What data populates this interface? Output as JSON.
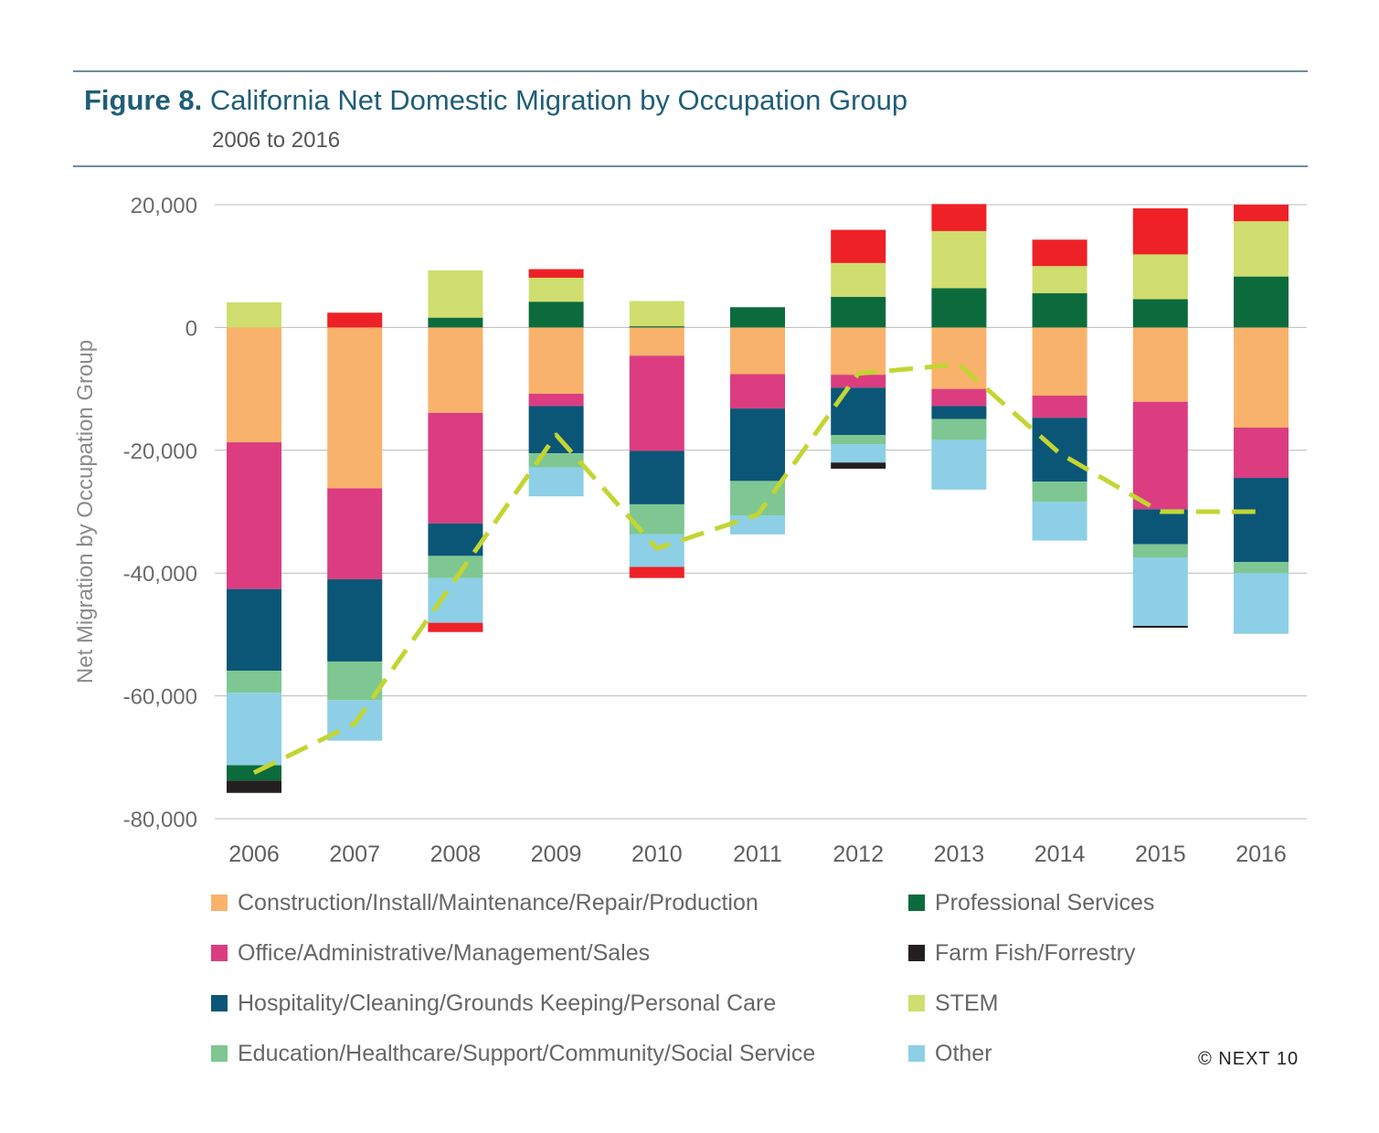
{
  "figure_label": "Figure 8.",
  "title": "California Net Domestic Migration by Occupation Group",
  "subtitle": "2006 to 2016",
  "copyright": "© NEXT 10",
  "chart_data": {
    "type": "bar",
    "stacked": true,
    "ylabel": "Net Migration by Occupation Group",
    "xlabel": "",
    "ylim": [
      -80000,
      20000
    ],
    "yticks": [
      20000,
      0,
      -20000,
      -40000,
      -60000,
      -80000
    ],
    "ytick_labels": [
      "20,000",
      "0",
      "-20,000",
      "-40,000",
      "-60,000",
      "-80,000"
    ],
    "grid": true,
    "legend_position": "bottom",
    "categories": [
      "2006",
      "2007",
      "2008",
      "2009",
      "2010",
      "2011",
      "2012",
      "2013",
      "2014",
      "2015",
      "2016"
    ],
    "series": [
      {
        "name": "Construction/Install/Maintenance/Repair/Production",
        "color": "#f9b26b",
        "values": [
          -18700,
          -26200,
          -13900,
          -10800,
          -4600,
          -7600,
          -7700,
          -10000,
          -11100,
          -12100,
          -16300
        ]
      },
      {
        "name": "Office/Administrative/Management/Sales",
        "color": "#db3d80",
        "values": [
          -23900,
          -14800,
          -18000,
          -2000,
          -15500,
          -5600,
          -2100,
          -2800,
          -3600,
          -17500,
          -8200
        ]
      },
      {
        "name": "Hospitality/Cleaning/Grounds Keeping/Personal Care",
        "color": "#0b5677",
        "values": [
          -13300,
          -13400,
          -5300,
          -7700,
          -8700,
          -11800,
          -7700,
          -2100,
          -10400,
          -5700,
          -13700
        ]
      },
      {
        "name": "Education/Healthcare/Support/Community/Social Service",
        "color": "#7ec792",
        "values": [
          -3600,
          -6300,
          -3600,
          -2300,
          -4900,
          -5600,
          -1500,
          -3400,
          -3300,
          -2200,
          -1800
        ]
      },
      {
        "name": "Other",
        "color": "#8dcfe6",
        "values": [
          -11800,
          -6600,
          -7300,
          -4700,
          -5300,
          -3100,
          -3000,
          -8100,
          -6300,
          -11100,
          -9900
        ]
      },
      {
        "name": "Professional Services",
        "color": "#0c6b3c",
        "values": [
          -2500,
          0,
          1600,
          4200,
          200,
          3300,
          5000,
          6400,
          5600,
          4600,
          8300
        ]
      },
      {
        "name": "Farm Fish/Forrestry",
        "color": "#231f20",
        "values": [
          -2000,
          0,
          0,
          0,
          0,
          0,
          -1000,
          0,
          0,
          -300,
          0
        ]
      },
      {
        "name": "STEM",
        "color": "#cfde6e",
        "values": [
          4100,
          0,
          7700,
          3900,
          4100,
          0,
          5500,
          9300,
          4400,
          7300,
          9000
        ]
      },
      {
        "name": "",
        "color": "#ee2127",
        "values": [
          0,
          2400,
          -1500,
          1400,
          -1800,
          0,
          5400,
          4400,
          4300,
          7500,
          2700
        ]
      }
    ],
    "net_total_line": {
      "style": "dashed",
      "color": "#c3d531",
      "values": [
        -72500,
        -64500,
        -41000,
        -17500,
        -36000,
        -30500,
        -7500,
        -6000,
        -20500,
        -30000,
        -30000
      ]
    },
    "legend": [
      {
        "label": "Construction/Install/Maintenance/Repair/Production",
        "color": "#f9b26b"
      },
      {
        "label": "Professional Services",
        "color": "#0c6b3c"
      },
      {
        "label": "Office/Administrative/Management/Sales",
        "color": "#db3d80"
      },
      {
        "label": "Farm Fish/Forrestry",
        "color": "#231f20"
      },
      {
        "label": "Hospitality/Cleaning/Grounds Keeping/Personal Care",
        "color": "#0b5677"
      },
      {
        "label": "STEM",
        "color": "#cfde6e"
      },
      {
        "label": "Education/Healthcare/Support/Community/Social Service",
        "color": "#7ec792"
      },
      {
        "label": "Other",
        "color": "#8dcfe6"
      }
    ]
  }
}
